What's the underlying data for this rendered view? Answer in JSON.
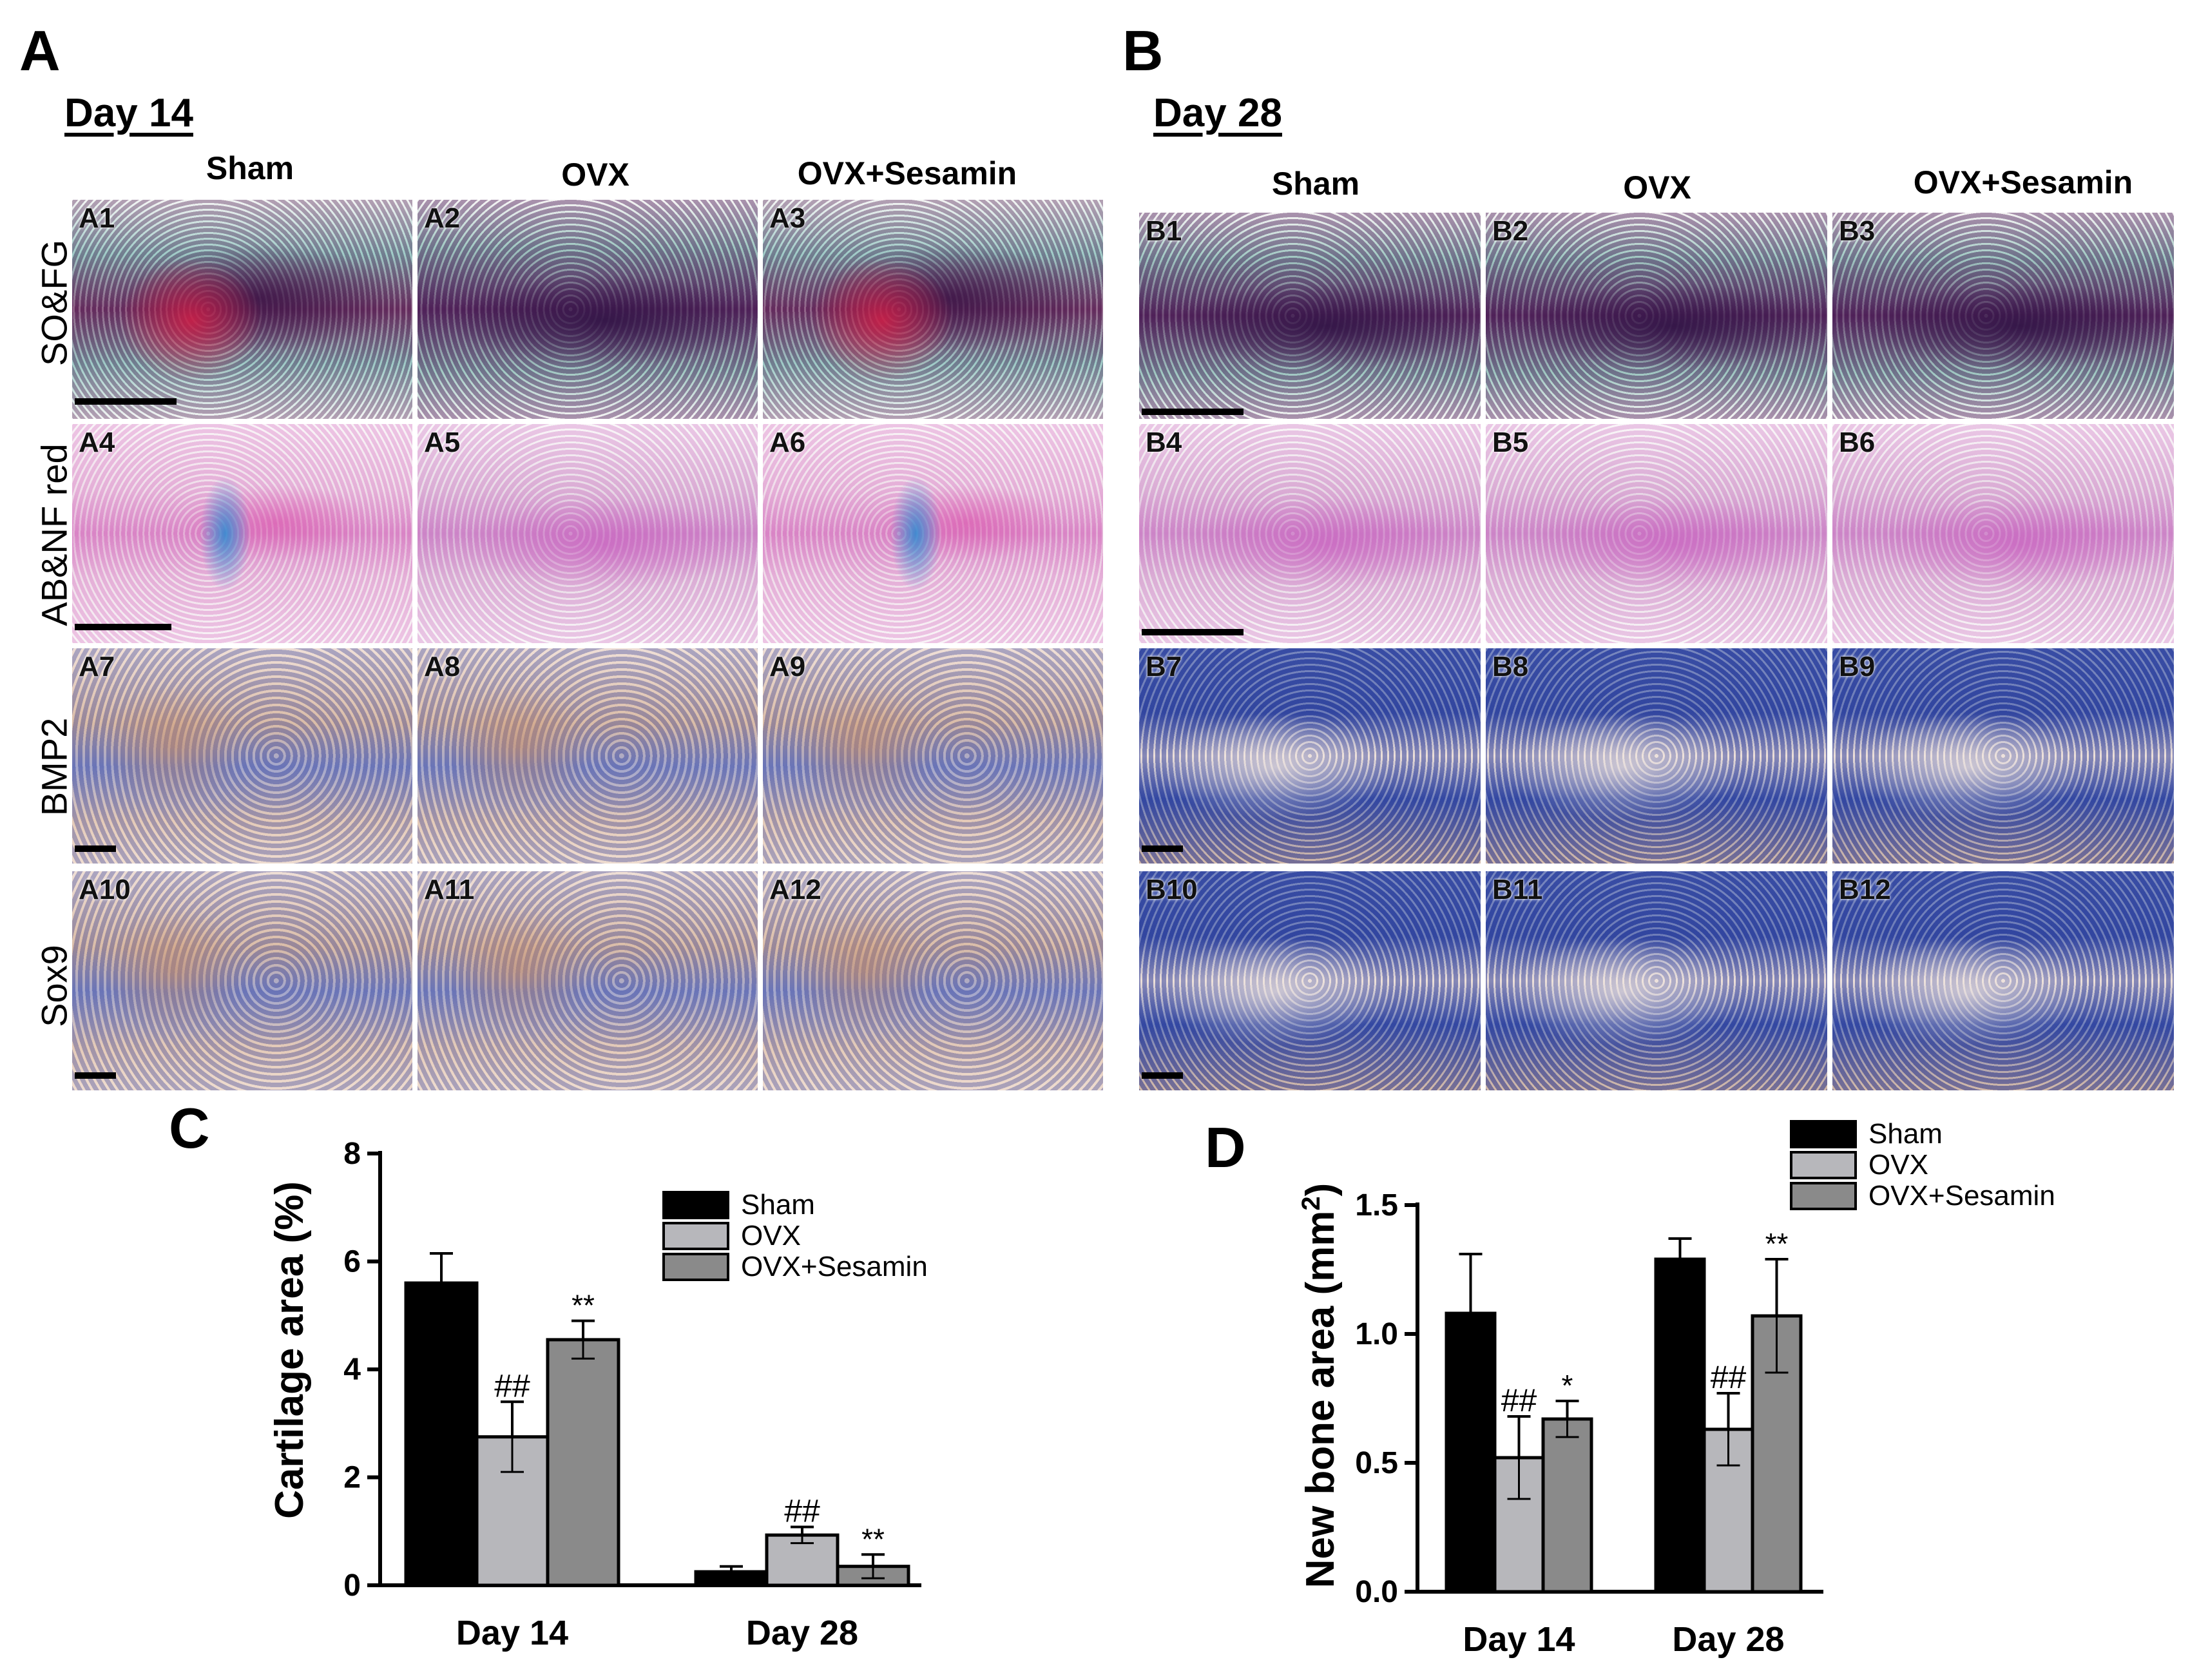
{
  "panel_letters": {
    "a": "A",
    "b": "B",
    "c": "C",
    "d": "D"
  },
  "day_labels": {
    "a": "Day 14",
    "b": "Day 28"
  },
  "col_headers": {
    "a": [
      "Sham",
      "OVX",
      "OVX+Sesamin"
    ],
    "b": [
      "Sham",
      "OVX",
      "OVX+Sesamin"
    ]
  },
  "row_labels": [
    "SO&FG",
    "AB&NF red",
    "BMP2",
    "Sox9"
  ],
  "image_labels": {
    "a": [
      "A1",
      "A2",
      "A3",
      "A4",
      "A5",
      "A6",
      "A7",
      "A8",
      "A9",
      "A10",
      "A11",
      "A12"
    ],
    "b": [
      "B1",
      "B2",
      "B3",
      "B4",
      "B5",
      "B6",
      "B7",
      "B8",
      "B9",
      "B10",
      "B11",
      "B12"
    ]
  },
  "chart_data": [
    {
      "type": "bar",
      "panel": "C",
      "title": "",
      "xlabel": "",
      "ylabel": "Cartilage area (%)",
      "ylim": [
        0,
        8
      ],
      "yticks": [
        "0",
        "2",
        "4",
        "6",
        "8"
      ],
      "yticks_values": [
        0,
        2,
        4,
        6,
        8
      ],
      "categories": [
        "Day 14",
        "Day 28"
      ],
      "series": [
        {
          "name": "Sham",
          "color": "#000000",
          "values": [
            5.6,
            0.25
          ],
          "errors": [
            0.55,
            0.1
          ],
          "annotations": [
            "",
            ""
          ]
        },
        {
          "name": "OVX",
          "color": "#b7b7bb",
          "values": [
            2.75,
            0.93
          ],
          "errors": [
            0.65,
            0.15
          ],
          "annotations": [
            "##",
            "##"
          ]
        },
        {
          "name": "OVX+Sesamin",
          "color": "#8a8a8a",
          "values": [
            4.55,
            0.35
          ],
          "errors": [
            0.35,
            0.22
          ],
          "annotations": [
            "**",
            "**"
          ]
        }
      ],
      "legend_position": "top-right"
    },
    {
      "type": "bar",
      "panel": "D",
      "title": "",
      "xlabel": "",
      "ylabel": "New bone area (mm",
      "ylabel_sup": "2",
      "ylabel_close": ")",
      "ylim": [
        0,
        1.5
      ],
      "yticks": [
        "0.0",
        "0.5",
        "1.0",
        "1.5"
      ],
      "yticks_values": [
        0,
        0.5,
        1.0,
        1.5
      ],
      "categories": [
        "Day 14",
        "Day 28"
      ],
      "series": [
        {
          "name": "Sham",
          "color": "#000000",
          "values": [
            1.08,
            1.29
          ],
          "errors": [
            0.23,
            0.08
          ],
          "annotations": [
            "",
            ""
          ]
        },
        {
          "name": "OVX",
          "color": "#b7b7bb",
          "values": [
            0.52,
            0.63
          ],
          "errors": [
            0.16,
            0.14
          ],
          "annotations": [
            "##",
            "##"
          ]
        },
        {
          "name": "OVX+Sesamin",
          "color": "#8a8a8a",
          "values": [
            0.67,
            1.07
          ],
          "errors": [
            0.07,
            0.22
          ],
          "annotations": [
            "*",
            "**"
          ]
        }
      ],
      "legend_position": "top-right"
    }
  ]
}
